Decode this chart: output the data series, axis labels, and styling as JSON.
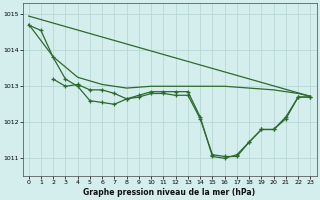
{
  "title": "Graphe pression niveau de la mer (hPa)",
  "background_color": "#d4eeed",
  "grid_color": "#b8d8d6",
  "line_color": "#2d6a2d",
  "xlim": [
    -0.5,
    23.5
  ],
  "ylim": [
    1010.5,
    1015.3
  ],
  "yticks": [
    1011,
    1012,
    1013,
    1014,
    1015
  ],
  "xticks": [
    0,
    1,
    2,
    3,
    4,
    5,
    6,
    7,
    8,
    9,
    10,
    11,
    12,
    13,
    14,
    15,
    16,
    17,
    18,
    19,
    20,
    21,
    22,
    23
  ],
  "series_smooth1": {
    "x": [
      0,
      23
    ],
    "y": [
      1014.95,
      1012.72
    ]
  },
  "series_smooth2": {
    "x": [
      0,
      2,
      4,
      6,
      8,
      10,
      12,
      14,
      16,
      18,
      20,
      22,
      23
    ],
    "y": [
      1014.72,
      1013.82,
      1013.25,
      1013.05,
      1012.95,
      1013.0,
      1013.0,
      1013.0,
      1013.0,
      1012.95,
      1012.9,
      1012.8,
      1012.72
    ]
  },
  "series_with_markers1": {
    "comment": "line with + markers: starts at (0,1014.7), goes to (1,1014.55), (2,1013.8), then dips at (3,1013.2),(4,1013.0),(5,1012.6),(6,1012.55),(7,1012.5),(8,1012.65),(9,1012.7),(10,1012.8),(11,1012.8),(12,1012.75),(13,1012.75),(14,1012.1),(15,1011.1),(16,1011.05),(17,1011.05),(18,1011.45),(19,1011.8),(20,1011.8),(21,1012.1),(22,1012.7),(23,1012.7)",
    "x": [
      0,
      1,
      2,
      3,
      4,
      5,
      6,
      7,
      8,
      9,
      10,
      11,
      12,
      13,
      14,
      15,
      16,
      17,
      18,
      19,
      20,
      21,
      22,
      23
    ],
    "y": [
      1014.7,
      1014.55,
      1013.8,
      1013.2,
      1013.0,
      1012.6,
      1012.55,
      1012.5,
      1012.65,
      1012.7,
      1012.8,
      1012.8,
      1012.75,
      1012.75,
      1012.1,
      1011.1,
      1011.05,
      1011.05,
      1011.45,
      1011.8,
      1011.8,
      1012.1,
      1012.7,
      1012.7
    ]
  },
  "series_with_markers2": {
    "comment": "second + marker line: starts at (2,1013.2),(3,1013.0),(4,1013.05),(5,1012.9),(6,1012.9),(7,1012.8),(8,1012.65),(9,1012.75),(10,1012.85),(11,1012.85),(12,1012.85),(13,1012.85),(14,1012.15),(15,1011.05),(16,1011.0),(17,1011.1),(18,1011.45),(19,1011.8),(20,1011.8),(21,1012.15),(22,1012.7),(23,1012.7)",
    "x": [
      2,
      3,
      4,
      5,
      6,
      7,
      8,
      9,
      10,
      11,
      12,
      13,
      14,
      15,
      16,
      17,
      18,
      19,
      20,
      21,
      22,
      23
    ],
    "y": [
      1013.2,
      1013.0,
      1013.05,
      1012.9,
      1012.9,
      1012.8,
      1012.65,
      1012.75,
      1012.85,
      1012.85,
      1012.85,
      1012.85,
      1012.15,
      1011.05,
      1011.0,
      1011.1,
      1011.45,
      1011.8,
      1011.8,
      1012.15,
      1012.7,
      1012.7
    ]
  }
}
